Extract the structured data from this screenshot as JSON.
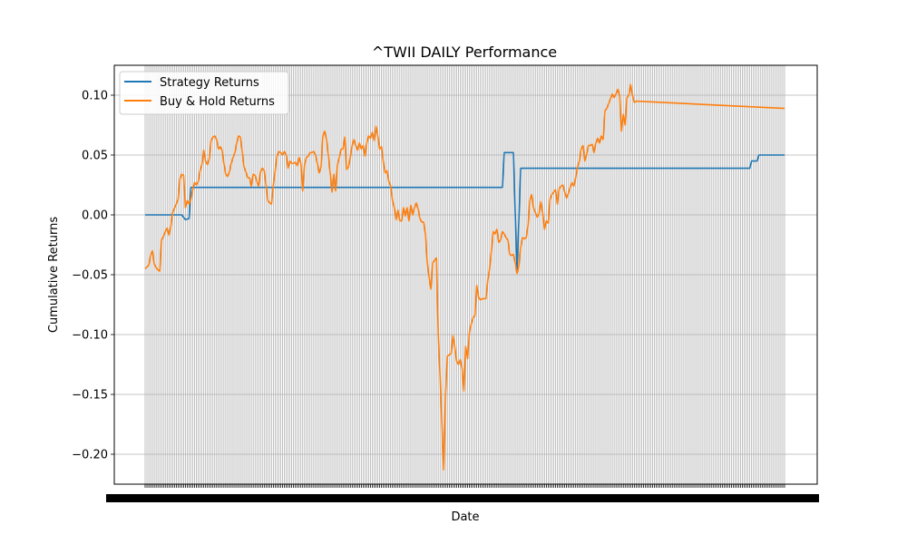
{
  "chart_data": {
    "type": "line",
    "title": "^TWII DAILY Performance",
    "xlabel": "Date",
    "ylabel": "Cumulative Returns",
    "ylim": [
      -0.225,
      0.125
    ],
    "yticks": [
      0.1,
      0.05,
      0.0,
      -0.05,
      -0.1,
      -0.15,
      -0.2
    ],
    "ytick_labels": [
      "0.10",
      "0.05",
      "0.00",
      "−0.05",
      "−0.10",
      "−0.15",
      "−0.20"
    ],
    "xtick_labels_illegible": true,
    "n_points": 350,
    "grid": "on",
    "legend": "top-left",
    "series": [
      {
        "name": "Strategy Returns",
        "color": "#1f77b4",
        "points": [
          [
            0,
            0.0
          ],
          [
            20,
            0.0
          ],
          [
            22,
            -0.004
          ],
          [
            24,
            -0.003
          ],
          [
            25,
            0.023
          ],
          [
            195,
            0.023
          ],
          [
            196,
            0.052
          ],
          [
            201,
            0.052
          ],
          [
            203,
            -0.048
          ],
          [
            205,
            0.039
          ],
          [
            330,
            0.039
          ],
          [
            331,
            0.045
          ],
          [
            334,
            0.045
          ],
          [
            335,
            0.05
          ],
          [
            349,
            0.05
          ]
        ]
      },
      {
        "name": "Buy & Hold Returns",
        "color": "#ff7f0e",
        "points": [
          [
            0,
            -0.045
          ],
          [
            2,
            -0.042
          ],
          [
            3,
            -0.034
          ],
          [
            4,
            -0.03
          ],
          [
            5,
            -0.041
          ],
          [
            6,
            -0.044
          ],
          [
            7,
            -0.046
          ],
          [
            8,
            -0.047
          ],
          [
            9,
            -0.021
          ],
          [
            10,
            -0.018
          ],
          [
            11,
            -0.014
          ],
          [
            12,
            -0.011
          ],
          [
            13,
            -0.017
          ],
          [
            14,
            -0.01
          ],
          [
            15,
            0.002
          ],
          [
            17,
            0.009
          ],
          [
            18,
            0.013
          ],
          [
            19,
            0.03
          ],
          [
            20,
            0.034
          ],
          [
            21,
            0.033
          ],
          [
            22,
            0.006
          ],
          [
            23,
            0.012
          ],
          [
            24,
            0.009
          ],
          [
            25,
            0.013
          ],
          [
            26,
            0.021
          ],
          [
            27,
            0.027
          ],
          [
            28,
            0.025
          ],
          [
            29,
            0.028
          ],
          [
            30,
            0.037
          ],
          [
            31,
            0.042
          ],
          [
            32,
            0.054
          ],
          [
            33,
            0.045
          ],
          [
            34,
            0.042
          ],
          [
            35,
            0.047
          ],
          [
            36,
            0.062
          ],
          [
            37,
            0.065
          ],
          [
            38,
            0.066
          ],
          [
            39,
            0.063
          ],
          [
            40,
            0.055
          ],
          [
            41,
            0.057
          ],
          [
            42,
            0.054
          ],
          [
            43,
            0.043
          ],
          [
            44,
            0.034
          ],
          [
            45,
            0.032
          ],
          [
            46,
            0.036
          ],
          [
            47,
            0.043
          ],
          [
            48,
            0.048
          ],
          [
            49,
            0.052
          ],
          [
            50,
            0.06
          ],
          [
            51,
            0.066
          ],
          [
            52,
            0.065
          ],
          [
            53,
            0.053
          ],
          [
            54,
            0.04
          ],
          [
            55,
            0.036
          ],
          [
            56,
            0.031
          ],
          [
            57,
            0.031
          ],
          [
            58,
            0.024
          ],
          [
            59,
            0.034
          ],
          [
            60,
            0.033
          ],
          [
            61,
            0.028
          ],
          [
            62,
            0.024
          ],
          [
            63,
            0.036
          ],
          [
            64,
            0.039
          ],
          [
            65,
            0.037
          ],
          [
            66,
            0.025
          ],
          [
            67,
            0.012
          ],
          [
            68,
            0.01
          ],
          [
            69,
            0.009
          ],
          [
            70,
            0.025
          ],
          [
            71,
            0.037
          ],
          [
            72,
            0.049
          ],
          [
            73,
            0.053
          ],
          [
            74,
            0.052
          ],
          [
            75,
            0.05
          ],
          [
            76,
            0.053
          ],
          [
            77,
            0.05
          ],
          [
            78,
            0.039
          ],
          [
            79,
            0.045
          ],
          [
            80,
            0.043
          ],
          [
            81,
            0.043
          ],
          [
            82,
            0.044
          ],
          [
            83,
            0.041
          ],
          [
            84,
            0.048
          ],
          [
            85,
            0.043
          ],
          [
            86,
            0.02
          ],
          [
            87,
            0.042
          ],
          [
            88,
            0.048
          ],
          [
            89,
            0.049
          ],
          [
            90,
            0.052
          ],
          [
            91,
            0.052
          ],
          [
            92,
            0.053
          ],
          [
            93,
            0.05
          ],
          [
            94,
            0.043
          ],
          [
            95,
            0.035
          ],
          [
            96,
            0.04
          ],
          [
            97,
            0.066
          ],
          [
            98,
            0.07
          ],
          [
            99,
            0.063
          ],
          [
            100,
            0.05
          ],
          [
            101,
            0.035
          ],
          [
            102,
            0.019
          ],
          [
            103,
            0.034
          ],
          [
            104,
            0.02
          ],
          [
            105,
            0.042
          ],
          [
            106,
            0.048
          ],
          [
            107,
            0.055
          ],
          [
            108,
            0.055
          ],
          [
            109,
            0.065
          ],
          [
            110,
            0.038
          ],
          [
            111,
            0.04
          ],
          [
            112,
            0.048
          ],
          [
            113,
            0.058
          ],
          [
            114,
            0.063
          ],
          [
            115,
            0.058
          ],
          [
            116,
            0.054
          ],
          [
            117,
            0.06
          ],
          [
            118,
            0.055
          ],
          [
            119,
            0.058
          ],
          [
            120,
            0.049
          ],
          [
            121,
            0.06
          ],
          [
            122,
            0.066
          ],
          [
            123,
            0.064
          ],
          [
            124,
            0.069
          ],
          [
            125,
            0.062
          ],
          [
            126,
            0.074
          ],
          [
            127,
            0.066
          ],
          [
            128,
            0.055
          ],
          [
            129,
            0.057
          ],
          [
            130,
            0.044
          ],
          [
            131,
            0.035
          ],
          [
            132,
            0.037
          ],
          [
            133,
            0.028
          ],
          [
            134,
            0.024
          ],
          [
            135,
            0.012
          ],
          [
            136,
            0.006
          ],
          [
            137,
            -0.004
          ],
          [
            138,
            0.004
          ],
          [
            139,
            -0.005
          ],
          [
            140,
            -0.005
          ],
          [
            141,
            0.006
          ],
          [
            142,
            -0.001
          ],
          [
            143,
            0.006
          ],
          [
            144,
            -0.005
          ],
          [
            145,
            0.008
          ],
          [
            146,
            0.0
          ],
          [
            147,
            0.006
          ],
          [
            148,
            0.01
          ],
          [
            149,
            0.005
          ],
          [
            150,
            -0.003
          ],
          [
            151,
            -0.006
          ],
          [
            152,
            -0.006
          ],
          [
            153,
            -0.016
          ],
          [
            154,
            -0.04
          ],
          [
            155,
            -0.052
          ],
          [
            156,
            -0.062
          ],
          [
            157,
            -0.04
          ],
          [
            158,
            -0.038
          ],
          [
            159,
            -0.036
          ],
          [
            160,
            -0.1
          ],
          [
            161,
            -0.135
          ],
          [
            162,
            -0.175
          ],
          [
            163,
            -0.213
          ],
          [
            164,
            -0.15
          ],
          [
            165,
            -0.118
          ],
          [
            166,
            -0.117
          ],
          [
            167,
            -0.116
          ],
          [
            168,
            -0.101
          ],
          [
            169,
            -0.11
          ],
          [
            170,
            -0.122
          ],
          [
            171,
            -0.125
          ],
          [
            172,
            -0.121
          ],
          [
            173,
            -0.128
          ],
          [
            174,
            -0.147
          ],
          [
            175,
            -0.11
          ],
          [
            176,
            -0.12
          ],
          [
            177,
            -0.098
          ],
          [
            178,
            -0.091
          ],
          [
            179,
            -0.086
          ],
          [
            180,
            -0.084
          ],
          [
            181,
            -0.059
          ],
          [
            182,
            -0.069
          ],
          [
            183,
            -0.071
          ],
          [
            184,
            -0.07
          ],
          [
            185,
            -0.07
          ],
          [
            186,
            -0.07
          ],
          [
            187,
            -0.055
          ],
          [
            188,
            -0.045
          ],
          [
            189,
            -0.03
          ],
          [
            190,
            -0.014
          ],
          [
            191,
            -0.016
          ],
          [
            192,
            -0.012
          ],
          [
            193,
            -0.023
          ],
          [
            194,
            -0.021
          ],
          [
            195,
            -0.014
          ],
          [
            196,
            -0.016
          ],
          [
            197,
            -0.019
          ],
          [
            198,
            -0.021
          ],
          [
            199,
            -0.033
          ],
          [
            200,
            -0.034
          ],
          [
            201,
            -0.033
          ],
          [
            202,
            -0.04
          ],
          [
            203,
            -0.049
          ],
          [
            204,
            -0.043
          ],
          [
            205,
            -0.027
          ],
          [
            206,
            -0.019
          ],
          [
            207,
            -0.02
          ],
          [
            208,
            -0.019
          ],
          [
            209,
            -0.009
          ],
          [
            210,
            0.012
          ],
          [
            211,
            0.017
          ],
          [
            212,
            0.006
          ],
          [
            213,
            0.002
          ],
          [
            214,
            -0.002
          ],
          [
            215,
            0.001
          ],
          [
            216,
            0.011
          ],
          [
            217,
            0.002
          ],
          [
            218,
            -0.012
          ],
          [
            219,
            -0.005
          ],
          [
            220,
            -0.007
          ],
          [
            221,
            0.013
          ],
          [
            222,
            0.017
          ],
          [
            223,
            0.019
          ],
          [
            224,
            0.021
          ],
          [
            225,
            0.009
          ],
          [
            226,
            0.022
          ],
          [
            227,
            0.024
          ],
          [
            228,
            0.025
          ],
          [
            229,
            0.019
          ],
          [
            230,
            0.014
          ],
          [
            231,
            0.018
          ],
          [
            232,
            0.023
          ],
          [
            233,
            0.027
          ],
          [
            234,
            0.024
          ],
          [
            235,
            0.031
          ],
          [
            236,
            0.04
          ],
          [
            237,
            0.045
          ],
          [
            238,
            0.055
          ],
          [
            239,
            0.058
          ],
          [
            240,
            0.045
          ],
          [
            241,
            0.051
          ],
          [
            242,
            0.058
          ],
          [
            243,
            0.058
          ],
          [
            244,
            0.059
          ],
          [
            245,
            0.052
          ],
          [
            246,
            0.06
          ],
          [
            247,
            0.064
          ],
          [
            248,
            0.06
          ],
          [
            249,
            0.066
          ],
          [
            250,
            0.063
          ],
          [
            251,
            0.087
          ],
          [
            252,
            0.089
          ],
          [
            253,
            0.093
          ],
          [
            254,
            0.097
          ],
          [
            255,
            0.101
          ],
          [
            256,
            0.098
          ],
          [
            257,
            0.101
          ],
          [
            258,
            0.105
          ],
          [
            259,
            0.1
          ],
          [
            260,
            0.07
          ],
          [
            261,
            0.084
          ],
          [
            262,
            0.075
          ],
          [
            263,
            0.098
          ],
          [
            264,
            0.1
          ],
          [
            265,
            0.109
          ],
          [
            266,
            0.1
          ],
          [
            267,
            0.094
          ],
          [
            268,
            0.095
          ],
          [
            349,
            0.089
          ]
        ]
      }
    ]
  }
}
